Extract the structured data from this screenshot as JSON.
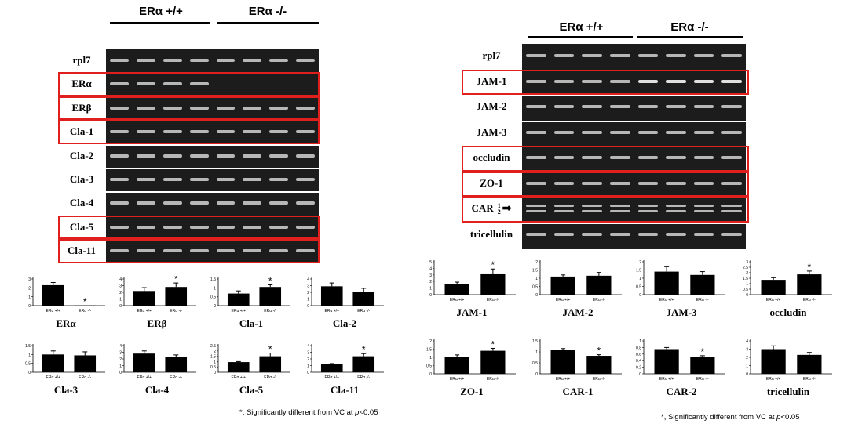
{
  "left_panel": {
    "headers": [
      "ERα  +/+",
      "ERα -/-"
    ],
    "gel_labels": [
      "rpl7",
      "ERα",
      "ERβ",
      "Cla-1",
      "Cla-2",
      "Cla-3",
      "Cla-4",
      "Cla-5",
      "Cla-11"
    ],
    "highlighted": [
      "ERα",
      "ERβ",
      "Cla-1",
      "Cla-5",
      "Cla-11"
    ],
    "footnote_prefix": "*, Significantly different from VC at ",
    "footnote_p": "p",
    "footnote_suffix": "<0.05"
  },
  "right_panel": {
    "headers": [
      "ERα  +/+",
      "ERα -/-"
    ],
    "gel_labels": [
      "rpl7",
      "JAM-1",
      "JAM-2",
      "JAM-3",
      "occludin",
      "ZO-1",
      "CAR",
      "tricellulin"
    ],
    "car_subscript": [
      "1",
      "2"
    ],
    "highlighted": [
      "JAM-1",
      "occludin",
      "ZO-1",
      "CAR"
    ],
    "footnote_prefix": "*, Significantly different from VC at ",
    "footnote_p": "p",
    "footnote_suffix": "<0.05"
  },
  "chart_data": [
    {
      "type": "bar",
      "title": "ERα",
      "categories": [
        "ERα +/+",
        "ERα -/-"
      ],
      "values": [
        2.3,
        0.02
      ],
      "errors": [
        0.3,
        0
      ],
      "ylim": [
        0,
        3
      ],
      "yticks": [
        0,
        1,
        2,
        3
      ],
      "significant": [
        false,
        true
      ]
    },
    {
      "type": "bar",
      "title": "ERβ",
      "categories": [
        "ERα +/+",
        "ERα -/-"
      ],
      "values": [
        2.2,
        2.8
      ],
      "errors": [
        0.5,
        0.6
      ],
      "ylim": [
        0,
        4
      ],
      "yticks": [
        0,
        1,
        2,
        3,
        4
      ],
      "significant": [
        false,
        true
      ]
    },
    {
      "type": "bar",
      "title": "Cla-1",
      "categories": [
        "ERα +/+",
        "ERα -/-"
      ],
      "values": [
        0.68,
        1.05
      ],
      "errors": [
        0.15,
        0.12
      ],
      "ylim": [
        0,
        1.5
      ],
      "yticks": [
        0,
        0.5,
        1,
        1.5
      ],
      "significant": [
        false,
        true
      ]
    },
    {
      "type": "bar",
      "title": "Cla-2",
      "categories": [
        "ERα +/+",
        "ERα -/-"
      ],
      "values": [
        2.9,
        2.1
      ],
      "errors": [
        0.5,
        0.5
      ],
      "ylim": [
        0,
        4
      ],
      "yticks": [
        0,
        1,
        2,
        3,
        4
      ],
      "significant": [
        false,
        false
      ]
    },
    {
      "type": "bar",
      "title": "Cla-3",
      "categories": [
        "ERα +/+",
        "ERα -/-"
      ],
      "values": [
        1.0,
        0.95
      ],
      "errors": [
        0.2,
        0.2
      ],
      "ylim": [
        0,
        1.5
      ],
      "yticks": [
        0,
        0.5,
        1,
        1.5
      ],
      "significant": [
        false,
        false
      ]
    },
    {
      "type": "bar",
      "title": "Cla-4",
      "categories": [
        "ERα +/+",
        "ERα -/-"
      ],
      "values": [
        2.8,
        2.3
      ],
      "errors": [
        0.4,
        0.3
      ],
      "ylim": [
        0,
        4
      ],
      "yticks": [
        0,
        1,
        2,
        3,
        4
      ],
      "significant": [
        false,
        false
      ]
    },
    {
      "type": "bar",
      "title": "Cla-5",
      "categories": [
        "ERα +/+",
        "ERα -/-"
      ],
      "values": [
        0.95,
        1.5
      ],
      "errors": [
        0.05,
        0.3
      ],
      "ylim": [
        0,
        2.5
      ],
      "yticks": [
        0,
        0.5,
        1,
        1.5,
        2,
        2.5
      ],
      "significant": [
        false,
        true
      ]
    },
    {
      "type": "bar",
      "title": "Cla-11",
      "categories": [
        "ERα +/+",
        "ERα -/-"
      ],
      "values": [
        1.2,
        2.4
      ],
      "errors": [
        0.1,
        0.4
      ],
      "ylim": [
        0,
        4
      ],
      "yticks": [
        0,
        1,
        2,
        3,
        4
      ],
      "significant": [
        false,
        true
      ]
    },
    {
      "type": "bar",
      "title": "JAM-1",
      "categories": [
        "ERα +/+",
        "ERα -/-"
      ],
      "values": [
        1.6,
        3.1
      ],
      "errors": [
        0.3,
        0.8
      ],
      "ylim": [
        0,
        5
      ],
      "yticks": [
        0,
        1,
        2,
        3,
        4,
        5
      ],
      "significant": [
        false,
        true
      ]
    },
    {
      "type": "bar",
      "title": "JAM-2",
      "categories": [
        "ERα +/+",
        "ERα -/-"
      ],
      "values": [
        1.1,
        1.15
      ],
      "errors": [
        0.1,
        0.2
      ],
      "ylim": [
        0,
        2
      ],
      "yticks": [
        0,
        0.5,
        1,
        1.5,
        2
      ],
      "significant": [
        false,
        false
      ]
    },
    {
      "type": "bar",
      "title": "JAM-3",
      "categories": [
        "ERα +/+",
        "ERα -/-"
      ],
      "values": [
        1.4,
        1.2
      ],
      "errors": [
        0.3,
        0.2
      ],
      "ylim": [
        0,
        2
      ],
      "yticks": [
        0,
        0.5,
        1,
        1.5,
        2
      ],
      "significant": [
        false,
        false
      ]
    },
    {
      "type": "bar",
      "title": "occludin",
      "categories": [
        "ERα +/+",
        "ERα -/-"
      ],
      "values": [
        1.35,
        1.85
      ],
      "errors": [
        0.2,
        0.3
      ],
      "ylim": [
        0,
        3
      ],
      "yticks": [
        0,
        0.5,
        1,
        1.5,
        2,
        2.5,
        3
      ],
      "significant": [
        false,
        true
      ]
    },
    {
      "type": "bar",
      "title": "ZO-1",
      "categories": [
        "ERα +/+",
        "ERα -/-"
      ],
      "values": [
        1.0,
        1.4
      ],
      "errors": [
        0.15,
        0.15
      ],
      "ylim": [
        0,
        2
      ],
      "yticks": [
        0,
        0.5,
        1,
        1.5,
        2
      ],
      "significant": [
        false,
        true
      ]
    },
    {
      "type": "bar",
      "title": "CAR-1",
      "categories": [
        "ERα +/+",
        "ERα -/-"
      ],
      "values": [
        1.1,
        0.82
      ],
      "errors": [
        0.05,
        0.05
      ],
      "ylim": [
        0,
        1.5
      ],
      "yticks": [
        0,
        0.5,
        1,
        1.5
      ],
      "significant": [
        false,
        true
      ]
    },
    {
      "type": "bar",
      "title": "CAR-2",
      "categories": [
        "ERα +/+",
        "ERα -/-"
      ],
      "values": [
        0.75,
        0.5
      ],
      "errors": [
        0.05,
        0.05
      ],
      "ylim": [
        0,
        1
      ],
      "yticks": [
        0,
        0.2,
        0.4,
        0.6,
        0.8,
        1
      ],
      "significant": [
        false,
        true
      ]
    },
    {
      "type": "bar",
      "title": "tricellulin",
      "categories": [
        "ERα +/+",
        "ERα -/-"
      ],
      "values": [
        3.0,
        2.3
      ],
      "errors": [
        0.4,
        0.3
      ],
      "ylim": [
        0,
        4
      ],
      "yticks": [
        0,
        1,
        2,
        3,
        4
      ],
      "significant": [
        false,
        false
      ]
    }
  ]
}
